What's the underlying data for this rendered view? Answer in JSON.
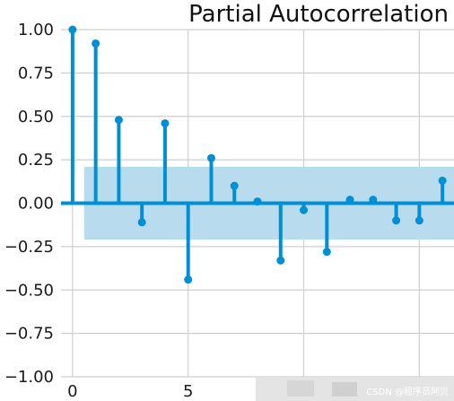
{
  "chart_data": {
    "type": "stem",
    "title": "Partial Autocorrelation",
    "xlabel": "",
    "ylabel": "",
    "x": [
      0,
      1,
      2,
      3,
      4,
      5,
      6,
      7,
      8,
      9,
      10,
      11,
      12,
      13,
      14,
      15,
      16
    ],
    "values": [
      1.0,
      0.92,
      0.48,
      -0.11,
      0.46,
      -0.44,
      0.26,
      0.1,
      0.01,
      -0.33,
      -0.04,
      -0.28,
      0.02,
      0.02,
      -0.1,
      -0.1,
      0.13
    ],
    "confidence_band": {
      "lower": -0.21,
      "upper": 0.21,
      "x_from": 0.5,
      "x_to": 16.5
    },
    "xlim": [
      -0.5,
      16.5
    ],
    "ylim": [
      -1.0,
      1.0
    ],
    "xticks": [
      0,
      5,
      10,
      15
    ],
    "xtick_labels": [
      "0",
      "5",
      "",
      ""
    ],
    "yticks": [
      -1.0,
      -0.75,
      -0.5,
      -0.25,
      0.0,
      0.25,
      0.5,
      0.75,
      1.0
    ],
    "ytick_labels": [
      "−1.00",
      "−0.75",
      "−0.50",
      "−0.25",
      "0.00",
      "0.25",
      "0.50",
      "0.75",
      "1.00"
    ],
    "grid": true,
    "colors": {
      "stem": "#008fd5",
      "band": "#b9dbee",
      "grid": "#cfcfcf",
      "background": "#ffffff"
    }
  },
  "watermark": "CSDN @程序员阿贝"
}
